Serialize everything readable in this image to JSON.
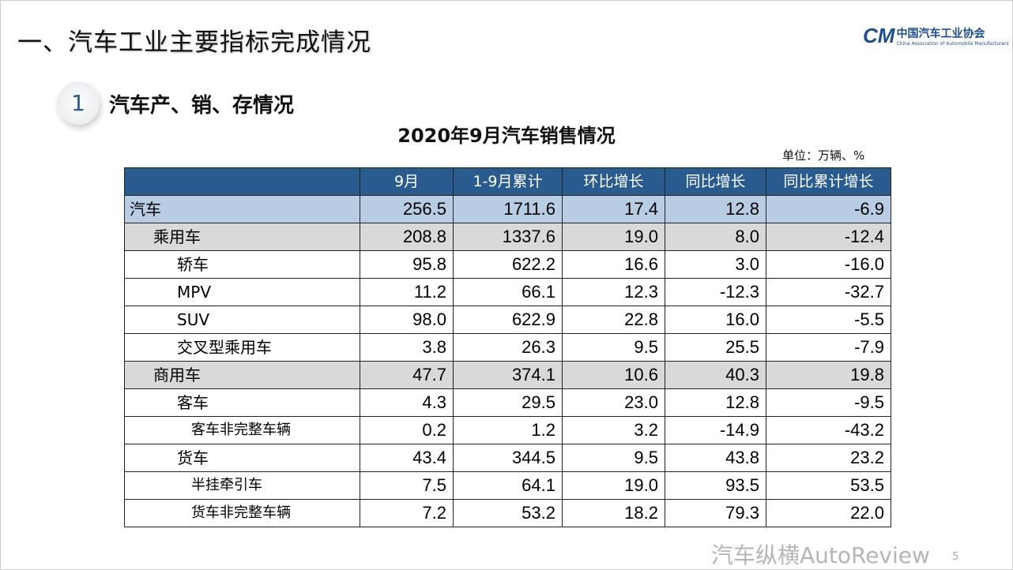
{
  "title": "一、汽车工业主要指标完成情况",
  "logo": {
    "mark": "CAM",
    "cn": "中国汽车工业协会",
    "en": "China Association of Automobile Manufacturers"
  },
  "section": {
    "number": "1",
    "title": "汽车产、销、存情况"
  },
  "table": {
    "title": "2020年9月汽车销售情况",
    "unit": "单位：万辆、%",
    "headers": [
      "",
      "9月",
      "1-9月累计",
      "环比增长",
      "同比增长",
      "同比累计增长"
    ],
    "rows": [
      {
        "name": "汽车",
        "level": 0,
        "values": [
          "256.5",
          "1711.6",
          "17.4",
          "12.8",
          "-6.9"
        ]
      },
      {
        "name": "乘用车",
        "level": 1,
        "values": [
          "208.8",
          "1337.6",
          "19.0",
          "8.0",
          "-12.4"
        ]
      },
      {
        "name": "轿车",
        "level": 2,
        "values": [
          "95.8",
          "622.2",
          "16.6",
          "3.0",
          "-16.0"
        ]
      },
      {
        "name": "MPV",
        "level": 2,
        "values": [
          "11.2",
          "66.1",
          "12.3",
          "-12.3",
          "-32.7"
        ]
      },
      {
        "name": "SUV",
        "level": 2,
        "values": [
          "98.0",
          "622.9",
          "22.8",
          "16.0",
          "-5.5"
        ]
      },
      {
        "name": "交叉型乘用车",
        "level": 2,
        "values": [
          "3.8",
          "26.3",
          "9.5",
          "25.5",
          "-7.9"
        ]
      },
      {
        "name": "商用车",
        "level": 1,
        "values": [
          "47.7",
          "374.1",
          "10.6",
          "40.3",
          "19.8"
        ]
      },
      {
        "name": "客车",
        "level": 2,
        "values": [
          "4.3",
          "29.5",
          "23.0",
          "12.8",
          "-9.5"
        ]
      },
      {
        "name": "客车非完整车辆",
        "level": 3,
        "values": [
          "0.2",
          "1.2",
          "3.2",
          "-14.9",
          "-43.2"
        ]
      },
      {
        "name": "货车",
        "level": 2,
        "values": [
          "43.4",
          "344.5",
          "9.5",
          "43.8",
          "23.2"
        ]
      },
      {
        "name": "半挂牵引车",
        "level": 3,
        "values": [
          "7.5",
          "64.1",
          "19.0",
          "93.5",
          "53.5"
        ]
      },
      {
        "name": "货车非完整车辆",
        "level": 3,
        "values": [
          "7.2",
          "53.2",
          "18.2",
          "79.3",
          "22.0"
        ]
      }
    ]
  },
  "watermark": "汽车纵横AutoReview",
  "page_number": "5",
  "colors": {
    "header_bg": "#2a5b8e",
    "total_row": "#b8cce4",
    "category_row": "#d9d9d9"
  }
}
